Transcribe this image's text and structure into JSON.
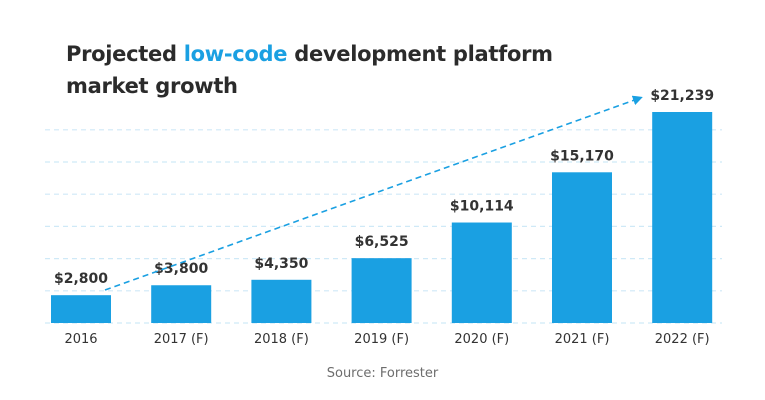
{
  "title": {
    "part1": "Projected ",
    "highlight": "low-code",
    "part2": " development platform",
    "line2": "market growth"
  },
  "source": "Source: Forrester",
  "colors": {
    "bar": "#1aa0e2",
    "highlight": "#1aa0e2",
    "grid": "#cfe9f7",
    "text": "#2b2b2b"
  },
  "chart_data": {
    "type": "bar",
    "categories": [
      "2016",
      "2017 (F)",
      "2018 (F)",
      "2019 (F)",
      "2020 (F)",
      "2021 (F)",
      "2022 (F)"
    ],
    "values": [
      2800,
      3800,
      4350,
      6525,
      10114,
      15170,
      21239
    ],
    "data_labels": [
      "$2,800",
      "$3,800",
      "$4,350",
      "$6,525",
      "$10,114",
      "$15,170",
      "$21,239"
    ],
    "title": "Projected low-code development platform market growth",
    "xlabel": "",
    "ylabel": "",
    "ylim": [
      0,
      21239
    ],
    "grid": "horizontal dashed",
    "trend_arrow": "dashed, from 2016 to 2022"
  }
}
